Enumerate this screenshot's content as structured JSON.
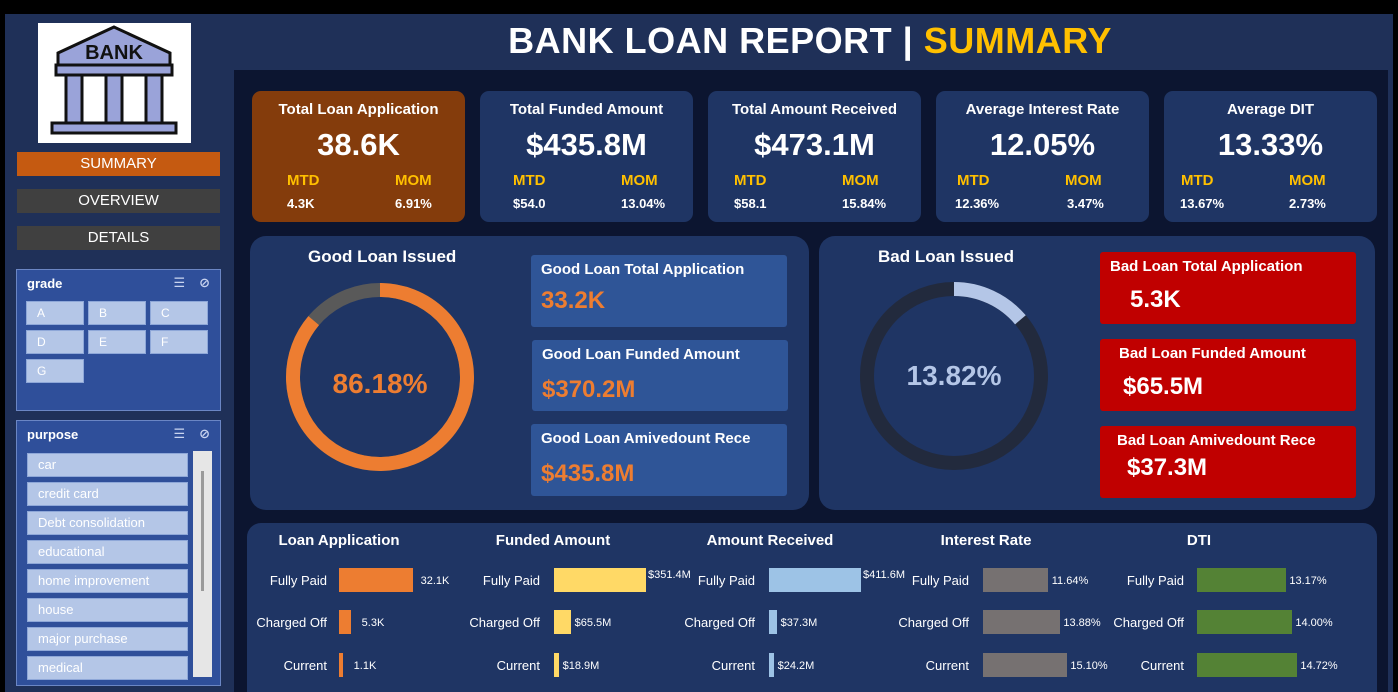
{
  "title": {
    "main": "BANK LOAN REPORT |",
    "highlight": "SUMMARY"
  },
  "logo": {
    "text": "BANK"
  },
  "nav": [
    {
      "label": "SUMMARY",
      "active": true
    },
    {
      "label": "OVERVIEW",
      "active": false
    },
    {
      "label": "DETAILS",
      "active": false
    }
  ],
  "grade_slicer": {
    "title": "grade",
    "options": [
      "A",
      "B",
      "C",
      "D",
      "E",
      "F",
      "G"
    ]
  },
  "purpose_slicer": {
    "title": "purpose",
    "options": [
      "car",
      "credit card",
      "Debt consolidation",
      "educational",
      "home improvement",
      "house",
      "major purchase",
      "medical"
    ]
  },
  "kpis": [
    {
      "label": "Total Loan Application",
      "value": "38.6K",
      "mtd_label": "MTD",
      "mtd": "4.3K",
      "mom_label": "MOM",
      "mom": "6.91%"
    },
    {
      "label": "Total Funded Amount",
      "value": "$435.8M",
      "mtd_label": "MTD",
      "mtd": "$54.0",
      "mom_label": "MOM",
      "mom": "13.04%"
    },
    {
      "label": "Total Amount Received",
      "value": "$473.1M",
      "mtd_label": "MTD",
      "mtd": "$58.1",
      "mom_label": "MOM",
      "mom": "15.84%"
    },
    {
      "label": "Average Interest Rate",
      "value": "12.05%",
      "mtd_label": "MTD",
      "mtd": "12.36%",
      "mom_label": "MOM",
      "mom": "3.47%"
    },
    {
      "label": "Average DIT",
      "value": "13.33%",
      "mtd_label": "MTD",
      "mtd": "13.67%",
      "mom_label": "MOM",
      "mom": "2.73%"
    }
  ],
  "good": {
    "title": "Good Loan Issued",
    "percent_label": "86.18%",
    "percent": 86.18,
    "color": "#ed7d31",
    "cards": [
      {
        "label": "Good Loan Total Application",
        "value": "33.2K"
      },
      {
        "label": "Good Loan Funded Amount",
        "value": "$370.2M"
      },
      {
        "label": "Good Loan Amivedount Rece",
        "value": "$435.8M"
      }
    ]
  },
  "bad": {
    "title": "Bad Loan Issued",
    "percent_label": "13.82%",
    "percent": 13.82,
    "color": "#b4c6e7",
    "cards": [
      {
        "label": "Bad Loan Total Application",
        "value": "5.3K"
      },
      {
        "label": "Bad Loan Funded Amount",
        "value": "$65.5M"
      },
      {
        "label": "Bad Loan Amivedount Rece",
        "value": "$37.3M"
      }
    ]
  },
  "chart_data": [
    {
      "type": "bar",
      "title": "Loan Application",
      "categories": [
        "Fully Paid",
        "Charged Off",
        "Current"
      ],
      "values": [
        32.1,
        5.3,
        1.1
      ],
      "labels": [
        "32.1K",
        "5.3K",
        "1.1K"
      ],
      "color": "#ed7d31"
    },
    {
      "type": "bar",
      "title": "Funded Amount",
      "categories": [
        "Fully Paid",
        "Charged Off",
        "Current"
      ],
      "values": [
        351.4,
        65.5,
        18.9
      ],
      "labels": [
        "$351.4M",
        "$65.5M",
        "$18.9M"
      ],
      "color": "#ffd966"
    },
    {
      "type": "bar",
      "title": "Amount Received",
      "categories": [
        "Fully Paid",
        "Charged Off",
        "Current"
      ],
      "values": [
        411.6,
        37.3,
        24.2
      ],
      "labels": [
        "$411.6M",
        "$37.3M",
        "$24.2M"
      ],
      "color": "#9dc3e6"
    },
    {
      "type": "bar",
      "title": "Interest Rate",
      "categories": [
        "Fully Paid",
        "Charged Off",
        "Current"
      ],
      "values": [
        11.64,
        13.88,
        15.1
      ],
      "labels": [
        "11.64%",
        "13.88%",
        "15.10%"
      ],
      "color": "#767171"
    },
    {
      "type": "bar",
      "title": "DTI",
      "categories": [
        "Fully Paid",
        "Charged Off",
        "Current"
      ],
      "values": [
        13.17,
        14.0,
        14.72
      ],
      "labels": [
        "13.17%",
        "14.00%",
        "14.72%"
      ],
      "color": "#548235"
    }
  ]
}
